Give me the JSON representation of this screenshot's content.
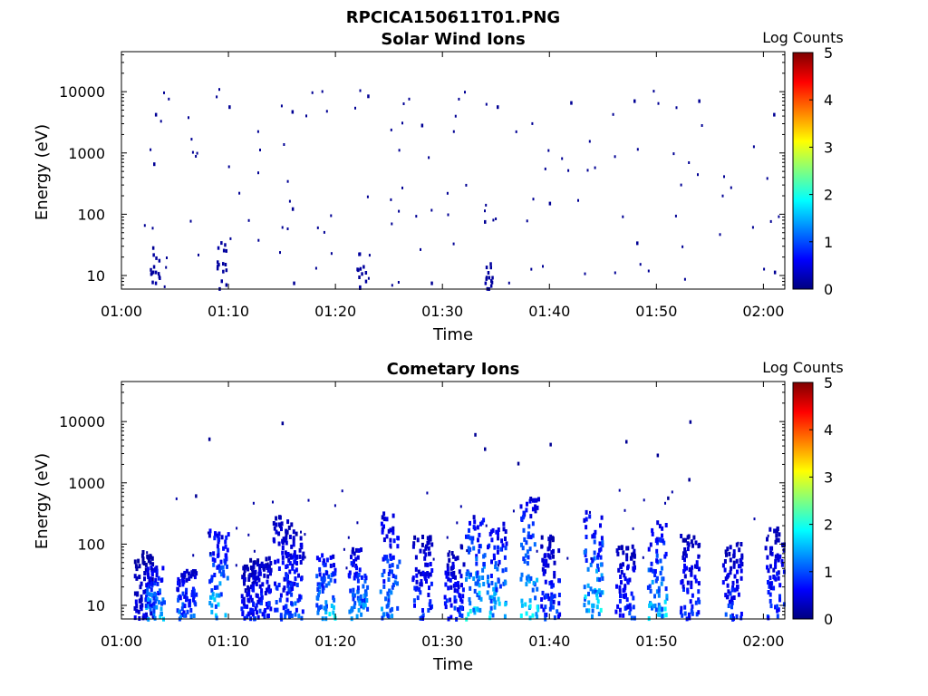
{
  "figure": {
    "title": "RPCICA150611T01.PNG"
  },
  "chart_data": [
    {
      "type": "heatmap",
      "title": "Solar Wind Ions",
      "xlabel": "Time",
      "ylabel": "Energy (eV)",
      "yscale": "log",
      "ylim": [
        6,
        45000
      ],
      "xlim": [
        "01:00",
        "02:02"
      ],
      "x_ticks": [
        "01:00",
        "01:10",
        "01:20",
        "01:30",
        "01:40",
        "01:50",
        "02:00"
      ],
      "y_ticks": [
        "10",
        "100",
        "1000",
        "10000"
      ],
      "colorbar": {
        "label": "Log Counts",
        "range": [
          0,
          5
        ],
        "ticks": [
          "0",
          "1",
          "2",
          "3",
          "4",
          "5"
        ]
      },
      "grid": false,
      "cells": [
        {
          "t": "01:03",
          "e": 8,
          "v": 0.2
        },
        {
          "t": "01:03",
          "e": 12,
          "v": 0.2
        },
        {
          "t": "01:03",
          "e": 30,
          "v": 0.1
        },
        {
          "t": "01:03",
          "e": 700,
          "v": 0.1
        },
        {
          "t": "01:03",
          "e": 4500,
          "v": 0.1
        },
        {
          "t": "01:09",
          "e": 15,
          "v": 0.2
        },
        {
          "t": "01:09",
          "e": 30,
          "v": 0.2
        },
        {
          "t": "01:10",
          "e": 6000,
          "v": 0.1
        },
        {
          "t": "01:16",
          "e": 8,
          "v": 0.1
        },
        {
          "t": "01:16",
          "e": 130,
          "v": 0.1
        },
        {
          "t": "01:16",
          "e": 5000,
          "v": 0.1
        },
        {
          "t": "01:22",
          "e": 10,
          "v": 0.1
        },
        {
          "t": "01:23",
          "e": 9000,
          "v": 0.1
        },
        {
          "t": "01:29",
          "e": 8,
          "v": 0.1
        },
        {
          "t": "01:28",
          "e": 3000,
          "v": 0.1
        },
        {
          "t": "01:34",
          "e": 8,
          "v": 0.2
        },
        {
          "t": "01:34",
          "e": 80,
          "v": 0.1
        },
        {
          "t": "01:35",
          "e": 6000,
          "v": 0.1
        },
        {
          "t": "01:40",
          "e": 160,
          "v": 0.1
        },
        {
          "t": "01:42",
          "e": 7000,
          "v": 0.1
        },
        {
          "t": "01:48",
          "e": 7500,
          "v": 0.1
        },
        {
          "t": "01:48",
          "e": 36,
          "v": 0.1
        },
        {
          "t": "01:54",
          "e": 7500,
          "v": 0.1
        },
        {
          "t": "01:55",
          "e": 6,
          "v": 0.1
        },
        {
          "t": "02:01",
          "e": 12,
          "v": 0.1
        },
        {
          "t": "02:01",
          "e": 4500,
          "v": 0.1
        }
      ]
    },
    {
      "type": "heatmap",
      "title": "Cometary Ions",
      "xlabel": "Time",
      "ylabel": "Energy (eV)",
      "yscale": "log",
      "ylim": [
        6,
        45000
      ],
      "xlim": [
        "01:00",
        "02:02"
      ],
      "x_ticks": [
        "01:00",
        "01:10",
        "01:20",
        "01:30",
        "01:40",
        "01:50",
        "02:00"
      ],
      "y_ticks": [
        "10",
        "100",
        "1000",
        "10000"
      ],
      "colorbar": {
        "label": "Log Counts",
        "range": [
          0,
          5
        ],
        "ticks": [
          "0",
          "1",
          "2",
          "3",
          "4",
          "5"
        ]
      },
      "grid": false,
      "bursts": [
        {
          "t": "01:02",
          "emax": 80,
          "v": 0.6
        },
        {
          "t": "01:03",
          "emax": 45,
          "v": 1.8
        },
        {
          "t": "01:06",
          "emax": 40,
          "v": 1.3
        },
        {
          "t": "01:09",
          "emax": 200,
          "v": 1.8
        },
        {
          "t": "01:12",
          "emax": 60,
          "v": 0.8
        },
        {
          "t": "01:13",
          "emax": 70,
          "v": 1.0
        },
        {
          "t": "01:15",
          "emax": 300,
          "v": 1.0
        },
        {
          "t": "01:16",
          "emax": 180,
          "v": 1.2
        },
        {
          "t": "01:19",
          "emax": 80,
          "v": 1.8
        },
        {
          "t": "01:22",
          "emax": 90,
          "v": 1.6
        },
        {
          "t": "01:25",
          "emax": 350,
          "v": 1.5
        },
        {
          "t": "01:28",
          "emax": 150,
          "v": 1.0
        },
        {
          "t": "01:31",
          "emax": 100,
          "v": 1.0
        },
        {
          "t": "01:33",
          "emax": 300,
          "v": 2.0
        },
        {
          "t": "01:35",
          "emax": 250,
          "v": 1.7
        },
        {
          "t": "01:38",
          "emax": 600,
          "v": 1.8
        },
        {
          "t": "01:40",
          "emax": 150,
          "v": 1.0
        },
        {
          "t": "01:44",
          "emax": 450,
          "v": 1.9
        },
        {
          "t": "01:47",
          "emax": 100,
          "v": 1.0
        },
        {
          "t": "01:50",
          "emax": 250,
          "v": 1.8
        },
        {
          "t": "01:53",
          "emax": 150,
          "v": 1.0
        },
        {
          "t": "01:57",
          "emax": 120,
          "v": 1.0
        },
        {
          "t": "02:01",
          "emax": 200,
          "v": 1.0
        }
      ],
      "cells": [
        {
          "t": "01:08",
          "e": 5500,
          "v": 0.1
        },
        {
          "t": "01:15",
          "e": 10000,
          "v": 0.1
        },
        {
          "t": "01:33",
          "e": 6500,
          "v": 0.1
        },
        {
          "t": "01:34",
          "e": 3800,
          "v": 0.1
        },
        {
          "t": "01:37",
          "e": 2200,
          "v": 0.1
        },
        {
          "t": "01:40",
          "e": 4500,
          "v": 0.1
        },
        {
          "t": "01:47",
          "e": 5000,
          "v": 0.1
        },
        {
          "t": "01:50",
          "e": 3000,
          "v": 0.1
        },
        {
          "t": "01:53",
          "e": 10500,
          "v": 0.1
        },
        {
          "t": "01:53",
          "e": 1200,
          "v": 0.1
        },
        {
          "t": "01:07",
          "e": 650,
          "v": 0.1
        },
        {
          "t": "01:51",
          "e": 600,
          "v": 0.1
        }
      ]
    }
  ]
}
